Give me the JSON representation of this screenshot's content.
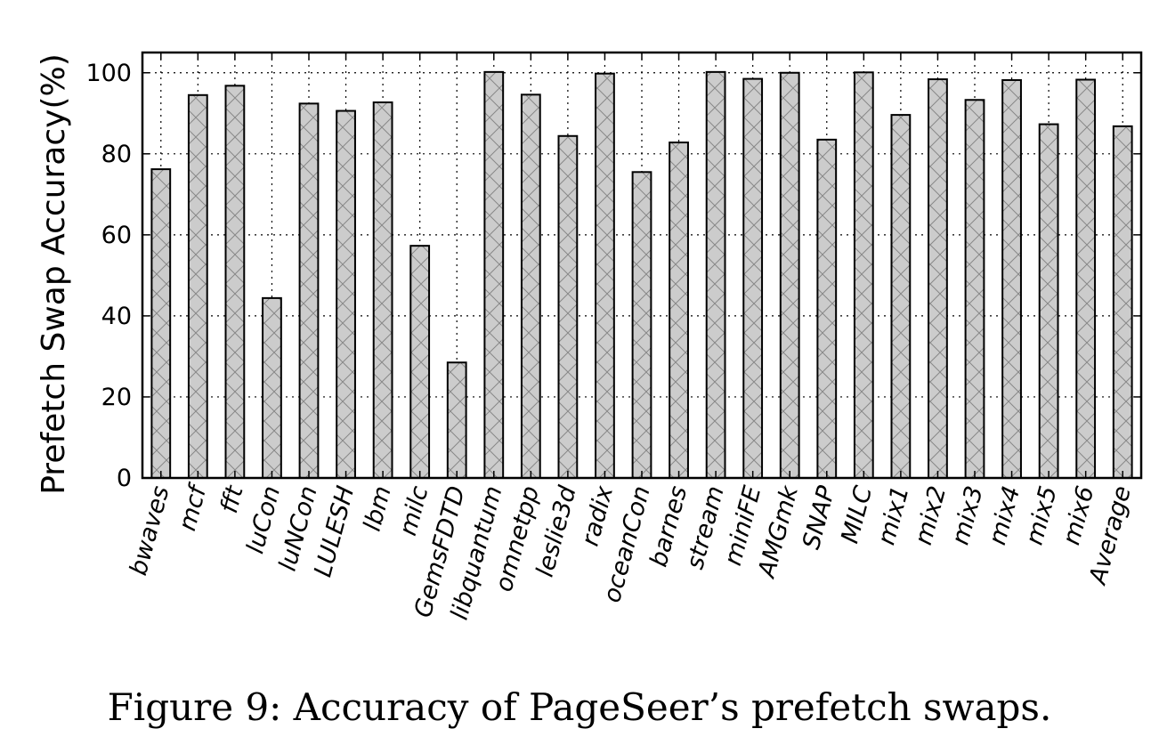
{
  "chart_data": {
    "type": "bar",
    "ylabel": "Prefetch Swap Accuracy(%)",
    "xlabel": "",
    "ylim": [
      0,
      105
    ],
    "yticks": [
      0,
      20,
      40,
      60,
      80,
      100
    ],
    "grid": true,
    "bar_color": "#cccccc",
    "hatch": "cross-diagonal",
    "categories": [
      "bwaves",
      "mcf",
      "fft",
      "luCon",
      "luNCon",
      "LULESH",
      "lbm",
      "milc",
      "GemsFDTD",
      "libquantum",
      "omnetpp",
      "leslie3d",
      "radix",
      "oceanCon",
      "barnes",
      "stream",
      "miniFE",
      "AMGmk",
      "SNAP",
      "MILC",
      "mix1",
      "mix2",
      "mix3",
      "mix4",
      "mix5",
      "mix6",
      "Average"
    ],
    "values": [
      76.2,
      94.5,
      96.8,
      44.4,
      92.4,
      90.6,
      92.7,
      57.3,
      28.5,
      100.2,
      94.6,
      84.4,
      99.8,
      75.5,
      82.8,
      100.2,
      98.5,
      100,
      83.5,
      100.1,
      89.6,
      98.4,
      93.3,
      98.2,
      87.3,
      98.3,
      86.8
    ]
  },
  "caption": "Figure 9: Accuracy of PageSeer’s prefetch swaps."
}
